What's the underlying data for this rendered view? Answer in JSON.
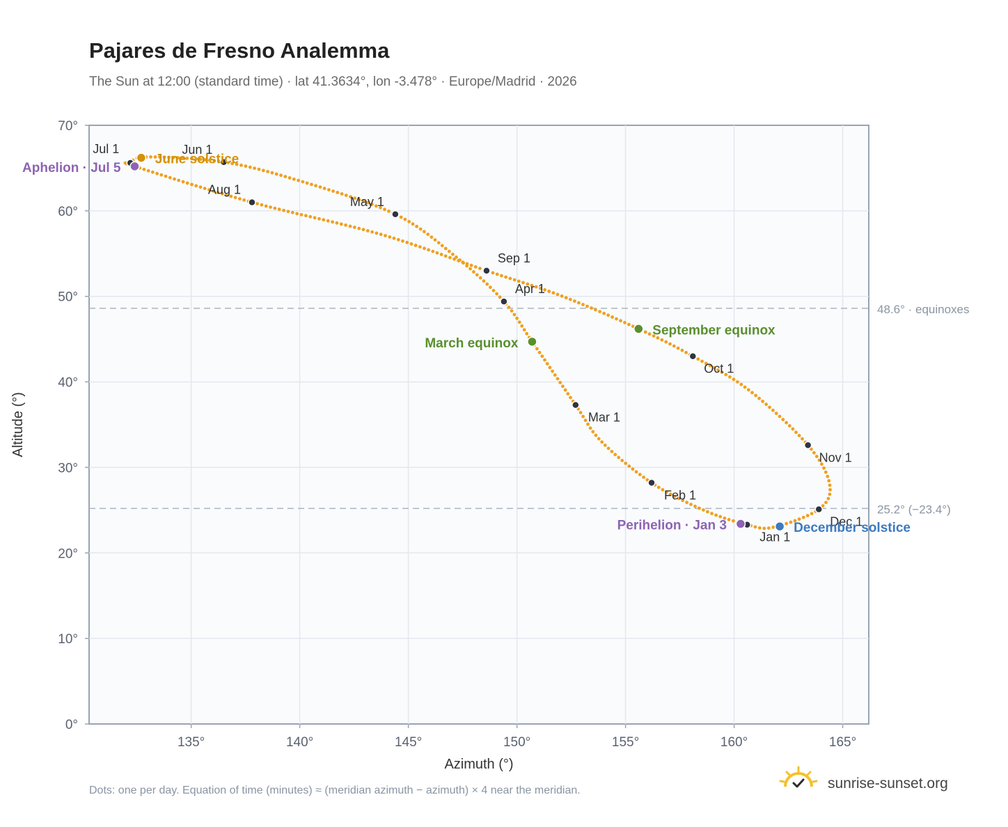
{
  "chart_data": {
    "type": "scatter",
    "title": "Pajares de Fresno Analemma",
    "subtitle": "The Sun at 12:00 (standard time) · lat 41.3634°, lon -3.478° · Europe/Madrid · 2026",
    "xlabel": "Azimuth (°)",
    "ylabel": "Altitude (°)",
    "xlim": [
      130.3,
      166.2
    ],
    "ylim": [
      0,
      70
    ],
    "xticks": [
      135,
      140,
      145,
      150,
      155,
      160,
      165
    ],
    "yticks": [
      0,
      10,
      20,
      30,
      40,
      50,
      60,
      70
    ],
    "tick_suffix": "°",
    "grid": true,
    "curve_color": "#f0a020",
    "reference_lines": [
      {
        "y": 48.6,
        "label": "48.6° · equinoxes"
      },
      {
        "y": 25.2,
        "label": "25.2° (−23.4°)"
      }
    ],
    "month_markers": [
      {
        "label": "Jan 1",
        "x": 160.6,
        "y": 23.3
      },
      {
        "label": "Feb 1",
        "x": 156.2,
        "y": 28.2
      },
      {
        "label": "Mar 1",
        "x": 152.7,
        "y": 37.3
      },
      {
        "label": "Apr 1",
        "x": 149.4,
        "y": 49.4
      },
      {
        "label": "May 1",
        "x": 144.4,
        "y": 59.6
      },
      {
        "label": "Jun 1",
        "x": 136.5,
        "y": 65.7
      },
      {
        "label": "Jul 1",
        "x": 132.2,
        "y": 65.6
      },
      {
        "label": "Aug 1",
        "x": 137.8,
        "y": 61.0
      },
      {
        "label": "Sep 1",
        "x": 148.6,
        "y": 53.0
      },
      {
        "label": "Oct 1",
        "x": 158.1,
        "y": 43.0
      },
      {
        "label": "Nov 1",
        "x": 163.4,
        "y": 32.6
      },
      {
        "label": "Dec 1",
        "x": 163.9,
        "y": 25.1
      }
    ],
    "events": [
      {
        "label": "June solstice",
        "x": 132.7,
        "y": 66.2,
        "color": "#d4920a"
      },
      {
        "label": "Aphelion · Jul 5",
        "x": 132.4,
        "y": 65.2,
        "color": "#8e63b3"
      },
      {
        "label": "March equinox",
        "x": 150.7,
        "y": 44.7,
        "color": "#5a8f2e"
      },
      {
        "label": "September equinox",
        "x": 155.6,
        "y": 46.2,
        "color": "#5a8f2e"
      },
      {
        "label": "Perihelion · Jan 3",
        "x": 160.3,
        "y": 23.4,
        "color": "#8e63b3"
      },
      {
        "label": "December solstice",
        "x": 162.1,
        "y": 23.1,
        "color": "#3d7abf"
      }
    ],
    "path_nodes": [
      [
        161.8,
        23.0
      ],
      [
        160.6,
        23.3
      ],
      [
        158.6,
        25.0
      ],
      [
        156.2,
        28.2
      ],
      [
        153.9,
        33.0
      ],
      [
        152.7,
        37.3
      ],
      [
        150.7,
        44.7
      ],
      [
        149.4,
        49.4
      ],
      [
        147.2,
        54.6
      ],
      [
        144.4,
        59.6
      ],
      [
        140.0,
        63.5
      ],
      [
        136.5,
        65.7
      ],
      [
        133.0,
        66.3
      ],
      [
        132.2,
        65.6
      ],
      [
        132.4,
        65.2
      ],
      [
        137.8,
        61.0
      ],
      [
        143.8,
        57.2
      ],
      [
        148.6,
        53.0
      ],
      [
        152.0,
        50.1
      ],
      [
        155.6,
        46.2
      ],
      [
        158.1,
        43.0
      ],
      [
        160.7,
        39.0
      ],
      [
        163.4,
        32.6
      ],
      [
        164.4,
        28.0
      ],
      [
        163.9,
        25.1
      ],
      [
        161.8,
        23.0
      ]
    ],
    "footnote": "Dots: one per day. Equation of time (minutes) ≈ (meridian azimuth − azimuth) × 4 near the meridian."
  },
  "brand": {
    "name": "sunrise-sunset.org",
    "icon": "sun-check-icon",
    "color": "#f3c22c"
  }
}
